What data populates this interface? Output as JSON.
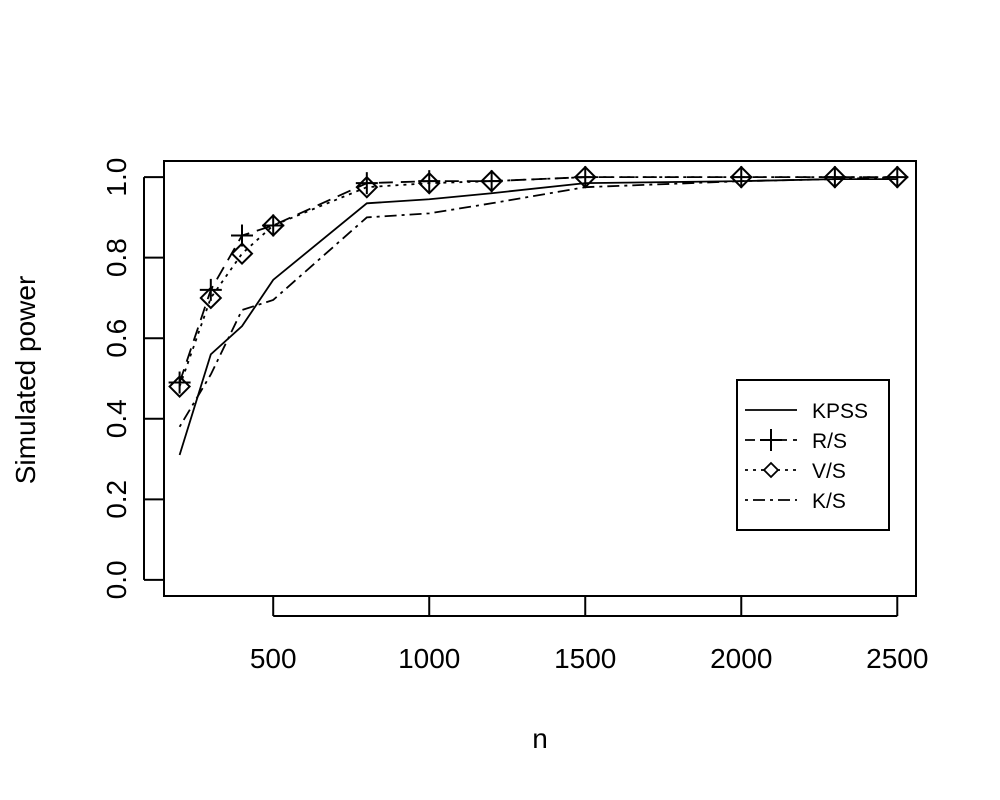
{
  "chart_data": {
    "type": "line",
    "title": "",
    "xlabel": "n",
    "ylabel": "Simulated power",
    "xlim": [
      150,
      2560
    ],
    "ylim": [
      -0.04,
      1.04
    ],
    "x_ticks": [
      500,
      1000,
      1500,
      2000,
      2500
    ],
    "y_ticks": [
      0.0,
      0.2,
      0.4,
      0.6,
      0.8,
      1.0
    ],
    "x_tick_labels": [
      "500",
      "1000",
      "1500",
      "2000",
      "2500"
    ],
    "y_tick_labels": [
      "0.0",
      "0.2",
      "0.4",
      "0.6",
      "0.8",
      "1.0"
    ],
    "legend_position": "right",
    "series": [
      {
        "name": "KPSS",
        "line": "solid",
        "marker": "none",
        "x": [
          200,
          300,
          400,
          500,
          800,
          1000,
          1200,
          1500,
          2000,
          2300,
          2500
        ],
        "y": [
          0.31,
          0.56,
          0.63,
          0.745,
          0.935,
          0.945,
          0.96,
          0.985,
          0.99,
          0.995,
          0.995
        ]
      },
      {
        "name": "R/S",
        "line": "dashed",
        "marker": "plus",
        "x": [
          200,
          300,
          400,
          500,
          800,
          1000,
          1200,
          1500,
          2000,
          2300,
          2500
        ],
        "y": [
          0.49,
          0.72,
          0.855,
          0.88,
          0.985,
          0.99,
          0.99,
          1.0,
          1.0,
          1.0,
          1.0
        ]
      },
      {
        "name": "V/S",
        "line": "dotted",
        "marker": "diamond",
        "x": [
          200,
          300,
          400,
          500,
          800,
          1000,
          1200,
          1500,
          2000,
          2300,
          2500
        ],
        "y": [
          0.48,
          0.7,
          0.81,
          0.88,
          0.975,
          0.985,
          0.99,
          1.0,
          1.0,
          1.0,
          1.0
        ]
      },
      {
        "name": "K/S",
        "line": "dashdot",
        "marker": "none",
        "x": [
          200,
          300,
          400,
          500,
          800,
          1000,
          1200,
          1500,
          2000,
          2300,
          2500
        ],
        "y": [
          0.38,
          0.51,
          0.67,
          0.695,
          0.9,
          0.91,
          0.935,
          0.975,
          0.99,
          0.995,
          1.0
        ]
      }
    ]
  }
}
